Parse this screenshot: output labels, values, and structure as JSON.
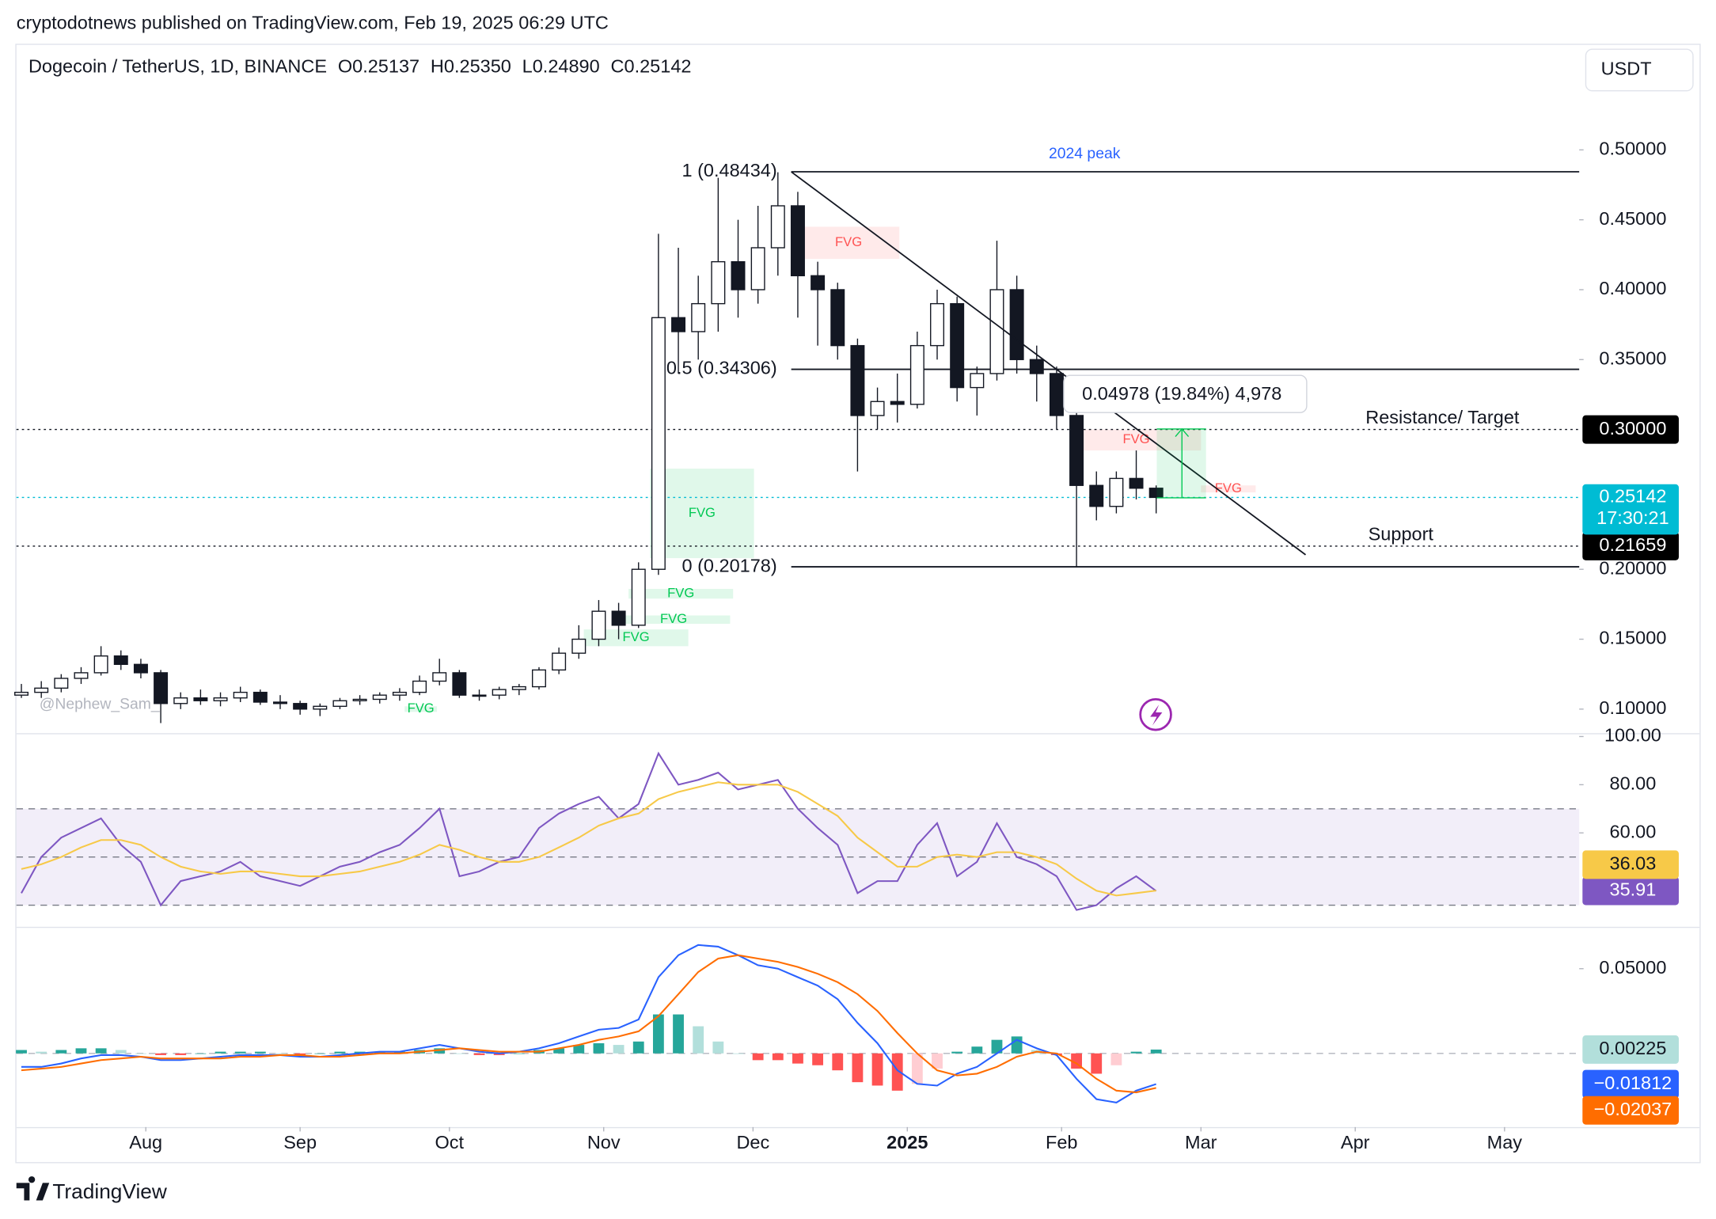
{
  "header": {
    "published": "cryptodotnews published on TradingView.com, Feb 19, 2025 06:29 UTC",
    "currency": "USDT",
    "footer": "TradingView"
  },
  "chart_data": [
    {
      "type": "candlestick",
      "title": "Dogecoin / TetherUS, 1D, BINANCE",
      "ohlc_labels": [
        "O0.25137",
        "H0.25350",
        "L0.24890",
        "C0.25142"
      ],
      "x": [
        6,
        10,
        14,
        18,
        22,
        26,
        30,
        34,
        38,
        42,
        46,
        50,
        54,
        58,
        62,
        66,
        70,
        74,
        78,
        82,
        86,
        90,
        94,
        98,
        102,
        106,
        110,
        114,
        118,
        122,
        126,
        130,
        134,
        138,
        142,
        146,
        150,
        154,
        158,
        162,
        166,
        170,
        174,
        178,
        182,
        186,
        190,
        194,
        198,
        202,
        206,
        210,
        214,
        218,
        222,
        226,
        230,
        234
      ],
      "open": [
        0.11,
        0.112,
        0.115,
        0.122,
        0.126,
        0.138,
        0.132,
        0.126,
        0.104,
        0.108,
        0.106,
        0.108,
        0.112,
        0.105,
        0.104,
        0.1,
        0.102,
        0.106,
        0.107,
        0.11,
        0.112,
        0.12,
        0.126,
        0.11,
        0.11,
        0.114,
        0.116,
        0.128,
        0.14,
        0.15,
        0.17,
        0.16,
        0.2,
        0.38,
        0.37,
        0.39,
        0.42,
        0.4,
        0.43,
        0.46,
        0.41,
        0.4,
        0.36,
        0.31,
        0.32,
        0.318,
        0.36,
        0.39,
        0.33,
        0.34,
        0.4,
        0.35,
        0.34,
        0.31,
        0.26,
        0.245,
        0.265,
        0.258
      ],
      "high": [
        0.118,
        0.12,
        0.125,
        0.13,
        0.145,
        0.142,
        0.136,
        0.128,
        0.112,
        0.114,
        0.112,
        0.116,
        0.114,
        0.11,
        0.106,
        0.104,
        0.108,
        0.11,
        0.112,
        0.115,
        0.124,
        0.136,
        0.128,
        0.114,
        0.116,
        0.118,
        0.13,
        0.144,
        0.16,
        0.178,
        0.176,
        0.205,
        0.44,
        0.43,
        0.41,
        0.48,
        0.45,
        0.46,
        0.484,
        0.47,
        0.42,
        0.405,
        0.365,
        0.33,
        0.34,
        0.37,
        0.4,
        0.395,
        0.345,
        0.435,
        0.41,
        0.36,
        0.345,
        0.315,
        0.27,
        0.27,
        0.285,
        0.26
      ],
      "low": [
        0.108,
        0.108,
        0.112,
        0.118,
        0.124,
        0.128,
        0.122,
        0.09,
        0.1,
        0.103,
        0.102,
        0.105,
        0.103,
        0.1,
        0.096,
        0.095,
        0.1,
        0.103,
        0.104,
        0.106,
        0.11,
        0.117,
        0.108,
        0.106,
        0.107,
        0.11,
        0.114,
        0.125,
        0.136,
        0.145,
        0.15,
        0.158,
        0.196,
        0.34,
        0.35,
        0.37,
        0.38,
        0.39,
        0.41,
        0.38,
        0.36,
        0.35,
        0.27,
        0.3,
        0.305,
        0.315,
        0.35,
        0.32,
        0.31,
        0.335,
        0.34,
        0.32,
        0.3,
        0.202,
        0.235,
        0.24,
        0.25,
        0.24
      ],
      "close": [
        0.112,
        0.115,
        0.122,
        0.126,
        0.138,
        0.132,
        0.126,
        0.104,
        0.108,
        0.106,
        0.108,
        0.112,
        0.105,
        0.104,
        0.1,
        0.102,
        0.106,
        0.107,
        0.11,
        0.112,
        0.12,
        0.126,
        0.11,
        0.11,
        0.114,
        0.116,
        0.128,
        0.14,
        0.15,
        0.17,
        0.16,
        0.2,
        0.38,
        0.37,
        0.39,
        0.42,
        0.4,
        0.43,
        0.46,
        0.41,
        0.4,
        0.36,
        0.31,
        0.32,
        0.318,
        0.36,
        0.39,
        0.33,
        0.34,
        0.4,
        0.35,
        0.34,
        0.31,
        0.26,
        0.245,
        0.265,
        0.258,
        0.25142
      ],
      "up_color": "#ffffff",
      "down_color": "#131722",
      "wick_color": "#131722",
      "xlim": [
        5,
        319
      ],
      "xticks": [
        {
          "value": 31,
          "label": "Aug"
        },
        {
          "value": 62,
          "label": "Sep"
        },
        {
          "value": 92,
          "label": "Oct"
        },
        {
          "value": 123,
          "label": "Nov"
        },
        {
          "value": 153,
          "label": "Dec"
        },
        {
          "value": 184,
          "label": "2025"
        },
        {
          "value": 215,
          "label": "Feb"
        },
        {
          "value": 243,
          "label": "Mar"
        },
        {
          "value": 274,
          "label": "Apr"
        },
        {
          "value": 304,
          "label": "May"
        }
      ],
      "ylim": [
        0.0828,
        0.5759
      ],
      "yticks": [
        {
          "value": 0.5,
          "label": "0.50000"
        },
        {
          "value": 0.45,
          "label": "0.45000"
        },
        {
          "value": 0.4,
          "label": "0.40000"
        },
        {
          "value": 0.35,
          "label": "0.35000"
        },
        {
          "value": 0.2,
          "label": "0.20000"
        },
        {
          "value": 0.15,
          "label": "0.15000"
        },
        {
          "value": 0.1,
          "label": "0.10000"
        }
      ],
      "fib_levels": [
        {
          "value": 0.48434,
          "label": "1 (0.48434)"
        },
        {
          "value": 0.34306,
          "label": "0.5 (0.34306)"
        },
        {
          "value": 0.20178,
          "label": "0 (0.20178)"
        }
      ],
      "levels": [
        {
          "value": 0.3,
          "label": "0.30000",
          "text": "Resistance/ Target",
          "color": "#131722",
          "badge": "#000000"
        },
        {
          "value": 0.21659,
          "text": "Support",
          "color": "#131722",
          "badge": "#000000"
        },
        {
          "value": 0.25142,
          "countdown": "17:30:21",
          "color": "#00bcd4",
          "badge": "#00bcd4"
        }
      ],
      "fvg": [
        {
          "label": "FVG",
          "x": [
            132.3,
            153.2
          ],
          "y": [
            0.208,
            0.272
          ],
          "color": "#00c853"
        },
        {
          "label": "FVG",
          "x": [
            162,
            182.4
          ],
          "y": [
            0.422,
            0.445
          ],
          "color": "#ff5252"
        },
        {
          "label": "FVG",
          "x": [
            217,
            243
          ],
          "y": [
            0.285,
            0.3
          ],
          "color": "#ff5252"
        },
        {
          "label": "FVG",
          "x": [
            243,
            254
          ],
          "y": [
            0.255,
            0.26
          ],
          "color": "#ff5252"
        },
        {
          "label": "FVG",
          "x": [
            128,
            149
          ],
          "y": [
            0.179,
            0.186
          ],
          "color": "#00c853"
        },
        {
          "label": "FVG",
          "x": [
            125.7,
            148.4
          ],
          "y": [
            0.161,
            0.167
          ],
          "color": "#00c853"
        },
        {
          "label": "FVG",
          "x": [
            119,
            140
          ],
          "y": [
            0.145,
            0.157
          ],
          "color": "#00c853"
        },
        {
          "label": "FVG",
          "x": [
            83,
            89.5
          ],
          "y": [
            0.098,
            0.102
          ],
          "color": "#00c853"
        }
      ],
      "peak_label": "2024 peak",
      "measure_label": "0.04978 (19.84%) 4,978",
      "watermark": "@Nephew_Sam_"
    },
    {
      "type": "line",
      "ylim": [
        21,
        101.4
      ],
      "yticks": [
        {
          "value": 100,
          "label": "100.00"
        },
        {
          "value": 80,
          "label": "80.00"
        },
        {
          "value": 60,
          "label": "60.00"
        }
      ],
      "band": [
        30,
        70
      ],
      "midline": 50,
      "band_color": "#7e57c2",
      "series": [
        {
          "color": "#7e57c2",
          "values": [
            35,
            50,
            58,
            62,
            66,
            55,
            48,
            30,
            40,
            42,
            44,
            48,
            42,
            40,
            38,
            42,
            46,
            48,
            52,
            55,
            62,
            70,
            42,
            44,
            48,
            50,
            62,
            68,
            72,
            75,
            66,
            72,
            93,
            80,
            82,
            85,
            78,
            80,
            82,
            70,
            62,
            55,
            35,
            40,
            40,
            55,
            64,
            42,
            48,
            64,
            50,
            47,
            42,
            28,
            30,
            37,
            42,
            35.91
          ]
        },
        {
          "color": "#f7c948",
          "values": [
            45,
            47,
            50,
            54,
            57,
            57,
            55,
            50,
            46,
            44,
            43,
            44,
            44,
            43,
            42,
            42,
            43,
            44,
            46,
            48,
            51,
            55,
            53,
            50,
            48,
            48,
            50,
            54,
            58,
            63,
            66,
            68,
            74,
            77,
            79,
            81,
            80,
            80,
            80,
            77,
            72,
            67,
            58,
            52,
            46,
            46,
            50,
            51,
            50,
            52,
            52,
            50,
            47,
            41,
            36,
            34,
            35,
            36.03
          ]
        }
      ]
    },
    {
      "type": "macd",
      "ylim": [
        -0.0435,
        0.0747
      ],
      "yticks": [
        {
          "value": 0.05,
          "label": "0.05000"
        }
      ],
      "histogram": {
        "colors": [
          "#26a69a",
          "#b2dfdb",
          "#ff5252",
          "#ffcdd2"
        ],
        "badge": "#b2dfdb",
        "values": [
          0.002,
          0.001,
          0.002,
          0.003,
          0.003,
          0.002,
          0,
          -0.001,
          -0.001,
          0,
          0.001,
          0.001,
          0.001,
          0,
          -0.001,
          0,
          0.001,
          0.001,
          0.001,
          0.001,
          0.002,
          0.003,
          0,
          -0.001,
          -0.001,
          0,
          0.002,
          0.003,
          0.005,
          0.006,
          0.005,
          0.007,
          0.023,
          0.023,
          0.016,
          0.007,
          0,
          -0.004,
          -0.004,
          -0.006,
          -0.007,
          -0.01,
          -0.017,
          -0.019,
          -0.022,
          -0.018,
          -0.009,
          0.001,
          0.004,
          0.008,
          0.01,
          0.002,
          -0.001,
          -0.009,
          -0.012,
          -0.007,
          0.001,
          0.00225
        ]
      },
      "series": [
        {
          "color": "#2962ff",
          "last_label": "−0.01812",
          "values": [
            -0.008,
            -0.008,
            -0.006,
            -0.003,
            -0.001,
            -0.001,
            -0.002,
            -0.004,
            -0.004,
            -0.003,
            -0.002,
            -0.001,
            -0.001,
            -0.001,
            -0.002,
            -0.002,
            -0.001,
            0,
            0.001,
            0.001,
            0.003,
            0.005,
            0.003,
            0.001,
            0,
            0.001,
            0.003,
            0.006,
            0.01,
            0.014,
            0.015,
            0.02,
            0.045,
            0.058,
            0.064,
            0.063,
            0.058,
            0.052,
            0.05,
            0.045,
            0.04,
            0.032,
            0.018,
            0.006,
            -0.01,
            -0.018,
            -0.019,
            -0.012,
            -0.008,
            0,
            0.008,
            0.003,
            -0.001,
            -0.015,
            -0.027,
            -0.029,
            -0.022,
            -0.01812
          ]
        },
        {
          "color": "#ff6d00",
          "last_label": "−0.02037",
          "values": [
            -0.01,
            -0.009,
            -0.008,
            -0.006,
            -0.004,
            -0.003,
            -0.002,
            -0.003,
            -0.003,
            -0.003,
            -0.003,
            -0.002,
            -0.002,
            -0.001,
            -0.001,
            -0.002,
            -0.002,
            -0.001,
            0,
            0,
            0.001,
            0.002,
            0.003,
            0.002,
            0.001,
            0.001,
            0.001,
            0.003,
            0.005,
            0.008,
            0.01,
            0.013,
            0.022,
            0.035,
            0.048,
            0.056,
            0.058,
            0.056,
            0.054,
            0.051,
            0.047,
            0.042,
            0.035,
            0.025,
            0.012,
            0,
            -0.01,
            -0.013,
            -0.012,
            -0.008,
            -0.002,
            0.001,
            0,
            -0.006,
            -0.015,
            -0.022,
            -0.023,
            -0.02037
          ]
        }
      ]
    }
  ]
}
